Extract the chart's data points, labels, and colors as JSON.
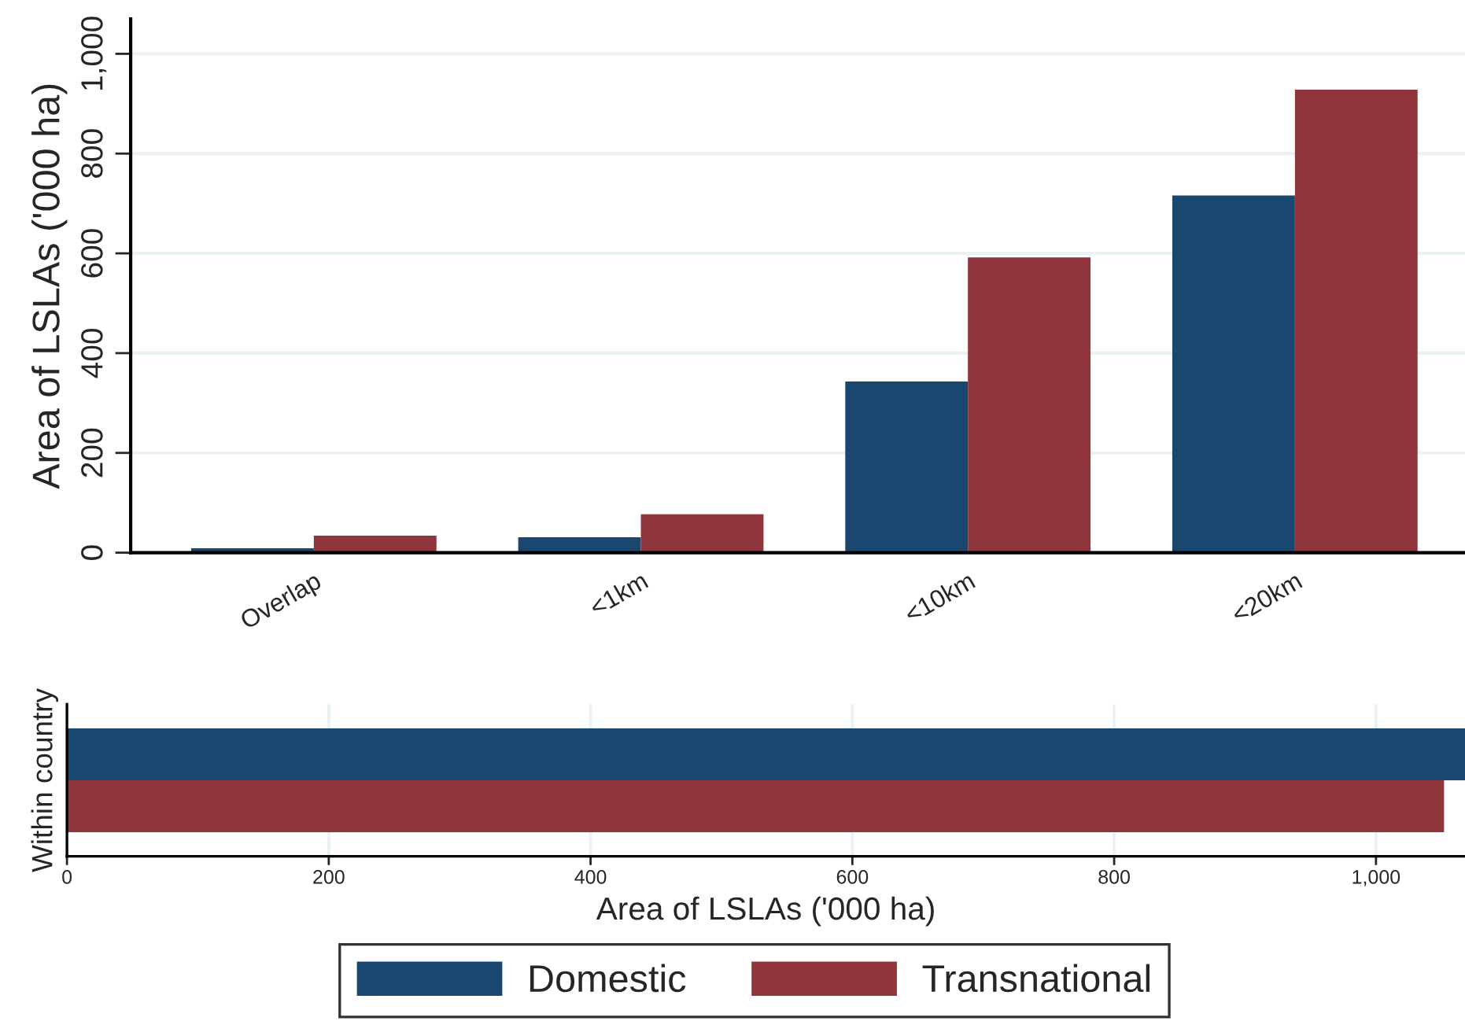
{
  "chart_data": [
    {
      "type": "bar",
      "ylabel": "Area of LSLAs ('000 ha)",
      "categories": [
        "Overlap",
        "<1km",
        "<10km",
        "<20km"
      ],
      "series": [
        {
          "name": "Domestic",
          "color": "#1a476f",
          "values": [
            9,
            31,
            343,
            716
          ]
        },
        {
          "name": "Transnational",
          "color": "#90353b",
          "values": [
            34,
            77,
            592,
            928
          ]
        }
      ],
      "ylim": [
        0,
        1070
      ],
      "yticks": [
        0,
        200,
        400,
        600,
        800,
        {
          "value": 1000,
          "label": "1,000"
        }
      ],
      "grid": "y",
      "legend": "bottom"
    },
    {
      "type": "bar",
      "orientation": "horizontal",
      "xlabel": "Area of LSLAs ('000 ha)",
      "categories": [
        "Within country"
      ],
      "series": [
        {
          "color": "#1a476f",
          "values": [
            1068
          ]
        },
        {
          "color": "#90353b",
          "values": [
            1052
          ]
        }
      ],
      "xlim": [
        0,
        1068
      ],
      "xticks": [
        0,
        200,
        400,
        600,
        800,
        {
          "value": 1000,
          "label": "1,000"
        }
      ],
      "grid": "x"
    }
  ]
}
